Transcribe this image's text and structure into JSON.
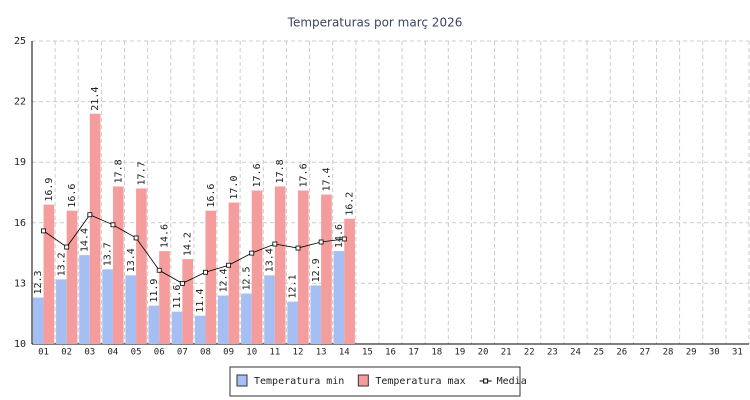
{
  "chart_data": {
    "type": "bar",
    "title": "Temperaturas por març 2026",
    "categories": [
      "01",
      "02",
      "03",
      "04",
      "05",
      "06",
      "07",
      "08",
      "09",
      "10",
      "11",
      "12",
      "13",
      "14",
      "15",
      "16",
      "17",
      "18",
      "19",
      "20",
      "21",
      "22",
      "23",
      "24",
      "25",
      "26",
      "27",
      "28",
      "29",
      "30",
      "31"
    ],
    "series": [
      {
        "name": "Temperatura min",
        "color": "#a6bff2",
        "values": [
          12.3,
          13.2,
          14.4,
          13.7,
          13.4,
          11.9,
          11.6,
          11.4,
          12.4,
          12.5,
          13.4,
          12.1,
          12.9,
          14.6,
          null,
          null,
          null,
          null,
          null,
          null,
          null,
          null,
          null,
          null,
          null,
          null,
          null,
          null,
          null,
          null,
          null
        ],
        "value_labels": [
          "12.3",
          "13.2",
          "14.4",
          "13.7",
          "13.4",
          "11.9",
          "11.6",
          "11.4",
          "12.4",
          "12.5",
          "13.4",
          "12.1",
          "12.9",
          "14.6",
          null,
          null,
          null,
          null,
          null,
          null,
          null,
          null,
          null,
          null,
          null,
          null,
          null,
          null,
          null,
          null,
          null
        ]
      },
      {
        "name": "Temperatura max",
        "color": "#f59c9c",
        "values": [
          16.9,
          16.6,
          21.4,
          17.8,
          17.7,
          14.6,
          14.2,
          16.6,
          17.0,
          17.6,
          17.8,
          17.6,
          17.4,
          16.2,
          null,
          null,
          null,
          null,
          null,
          null,
          null,
          null,
          null,
          null,
          null,
          null,
          null,
          null,
          null,
          null,
          null
        ],
        "value_labels": [
          "16.9",
          "16.6",
          "21.4",
          "17.8",
          "17.7",
          "14.6",
          "14.2",
          "16.6",
          "17.0",
          "17.6",
          "17.8",
          "17.6",
          "17.4",
          "16.2",
          null,
          null,
          null,
          null,
          null,
          null,
          null,
          null,
          null,
          null,
          null,
          null,
          null,
          null,
          null,
          null,
          null
        ]
      },
      {
        "name": "Media",
        "type": "line",
        "color": "#000000",
        "values": [
          15.6,
          14.8,
          16.4,
          15.9,
          15.25,
          13.65,
          13.0,
          13.55,
          13.9,
          14.5,
          14.95,
          14.75,
          15.05,
          15.2,
          null,
          null,
          null,
          null,
          null,
          null,
          null,
          null,
          null,
          null,
          null,
          null,
          null,
          null,
          null,
          null,
          null
        ]
      }
    ],
    "ylim": [
      10,
      25
    ],
    "yticks": [
      10,
      13,
      16,
      19,
      22,
      25
    ],
    "grid": true
  }
}
